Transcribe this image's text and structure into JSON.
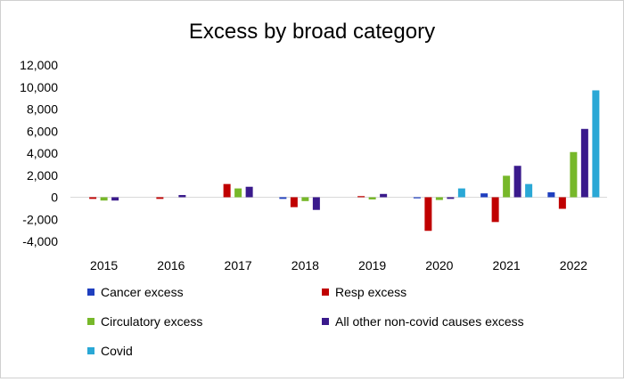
{
  "chart_data": {
    "type": "bar",
    "title": "Excess by broad category",
    "xlabel": "",
    "ylabel": "",
    "categories": [
      "2015",
      "2016",
      "2017",
      "2018",
      "2019",
      "2020",
      "2021",
      "2022"
    ],
    "ylim": [
      -4000,
      12000
    ],
    "yticks": [
      -4000,
      -2000,
      0,
      2000,
      4000,
      6000,
      8000,
      10000,
      12000
    ],
    "ytick_labels": [
      "-4,000",
      "-2,000",
      "0",
      "2,000",
      "4,000",
      "6,000",
      "8,000",
      "10,000",
      "12,000"
    ],
    "grid": false,
    "legend_position": "bottom",
    "series": [
      {
        "name": "Cancer excess",
        "color": "#1f3fbf",
        "values": [
          0,
          0,
          0,
          -150,
          0,
          -100,
          350,
          450
        ]
      },
      {
        "name": "Resp excess",
        "color": "#c00000",
        "values": [
          -150,
          -150,
          1200,
          -900,
          100,
          -3050,
          -2250,
          -1050
        ]
      },
      {
        "name": "Circulatory excess",
        "color": "#77b82a",
        "values": [
          -300,
          0,
          800,
          -350,
          -200,
          -250,
          1950,
          4100
        ]
      },
      {
        "name": "All other non-covid causes excess",
        "color": "#3a1a8c",
        "values": [
          -300,
          200,
          950,
          -1150,
          300,
          -150,
          2850,
          6200
        ]
      },
      {
        "name": "Covid",
        "color": "#2aa8d6",
        "values": [
          0,
          0,
          0,
          0,
          0,
          800,
          1200,
          9700
        ]
      }
    ]
  }
}
